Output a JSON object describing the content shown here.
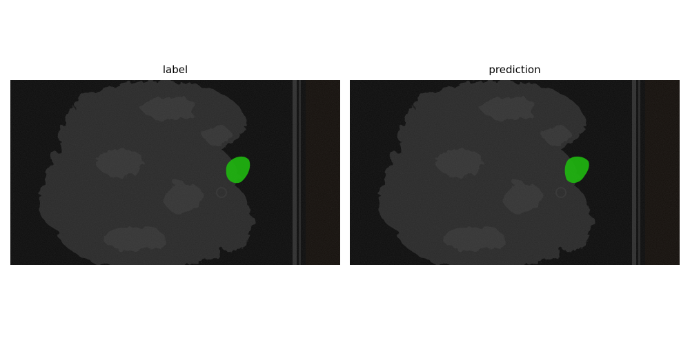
{
  "figure": {
    "panels": [
      {
        "title": "label",
        "mask": {
          "color": "#1fb80f",
          "opacity": 0.9
        }
      },
      {
        "title": "prediction",
        "mask": {
          "color": "#1fb80f",
          "opacity": 0.9
        }
      }
    ]
  },
  "colors": {
    "background": "#0c0c0c",
    "foliage": "#2a2a2a",
    "rail": "#3a3a3a",
    "soil": "#140f0b"
  }
}
